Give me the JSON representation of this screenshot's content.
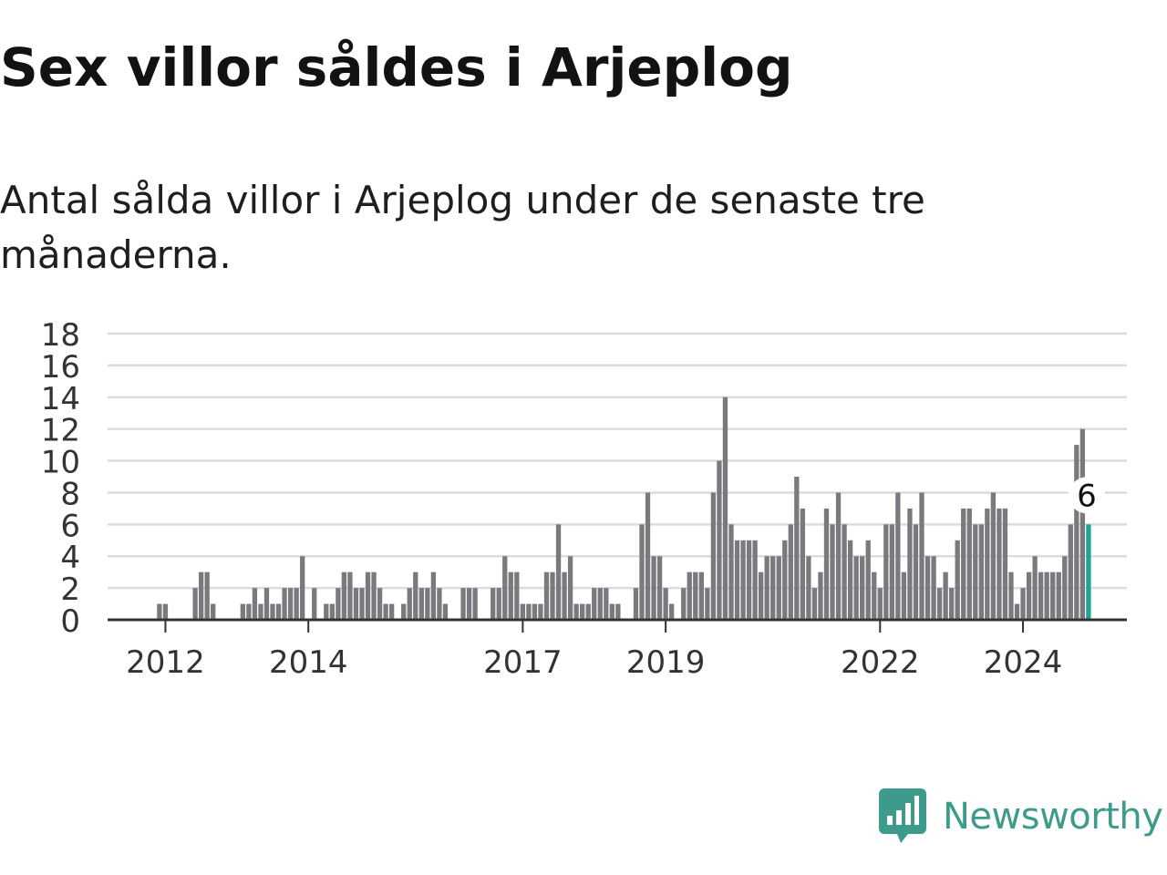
{
  "title": "Sex villor såldes i Arjeplog",
  "subtitle": "Antal sålda villor i Arjeplog under de senaste tre månaderna.",
  "brand": {
    "name": "Newsworthy",
    "icon": "newsworthy-logo-icon",
    "color": "#3d9b8c"
  },
  "chart_data": {
    "type": "bar",
    "bar_color": "#7a797e",
    "highlight_color": "#1ba597",
    "ylim": [
      0,
      18
    ],
    "y_ticks": [
      "0",
      "2",
      "4",
      "6",
      "8",
      "10",
      "12",
      "14",
      "16",
      "18"
    ],
    "x_ticks": [
      {
        "label": "2012",
        "index": 9
      },
      {
        "label": "2014",
        "index": 33
      },
      {
        "label": "2017",
        "index": 69
      },
      {
        "label": "2019",
        "index": 93
      },
      {
        "label": "2022",
        "index": 129
      },
      {
        "label": "2024",
        "index": 153
      }
    ],
    "values": [
      0,
      0,
      0,
      0,
      0,
      0,
      0,
      0,
      1,
      1,
      0,
      0,
      0,
      0,
      2,
      3,
      3,
      1,
      0,
      0,
      0,
      0,
      1,
      1,
      2,
      1,
      2,
      1,
      1,
      2,
      2,
      2,
      4,
      0,
      2,
      0,
      1,
      1,
      2,
      3,
      3,
      2,
      2,
      3,
      3,
      2,
      1,
      1,
      0,
      1,
      2,
      3,
      2,
      2,
      3,
      2,
      1,
      0,
      0,
      2,
      2,
      2,
      0,
      0,
      2,
      2,
      4,
      3,
      3,
      1,
      1,
      1,
      1,
      3,
      3,
      6,
      3,
      4,
      1,
      1,
      1,
      2,
      2,
      2,
      1,
      1,
      0,
      0,
      2,
      6,
      8,
      4,
      4,
      2,
      1,
      0,
      2,
      3,
      3,
      3,
      2,
      8,
      10,
      14,
      6,
      5,
      5,
      5,
      5,
      3,
      4,
      4,
      4,
      5,
      6,
      9,
      7,
      4,
      2,
      3,
      7,
      6,
      8,
      6,
      5,
      4,
      4,
      5,
      3,
      2,
      6,
      6,
      8,
      3,
      7,
      6,
      8,
      4,
      4,
      2,
      3,
      2,
      5,
      7,
      7,
      6,
      6,
      7,
      8,
      7,
      7,
      3,
      1,
      2,
      3,
      4,
      3,
      3,
      3,
      3,
      4,
      6,
      11,
      12,
      6
    ],
    "highlight": {
      "index": 164,
      "label": "6"
    }
  }
}
